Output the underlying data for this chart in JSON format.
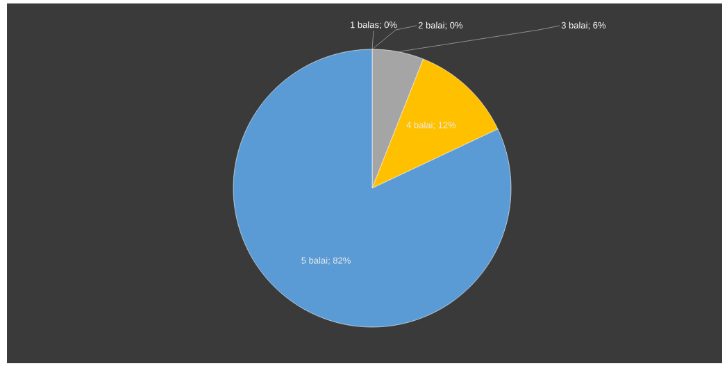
{
  "chart_data": {
    "type": "pie",
    "categories": [
      "1 balas; 0%",
      "2 balai; 0%",
      "3 balai; 6%",
      "4 balai; 12%",
      "5 balai; 82%"
    ],
    "values": [
      0,
      0,
      6,
      12,
      82
    ],
    "colors": [
      "#5b9bd5",
      "#ed7d31",
      "#a5a5a5",
      "#ffc000",
      "#5b9bd5"
    ]
  }
}
